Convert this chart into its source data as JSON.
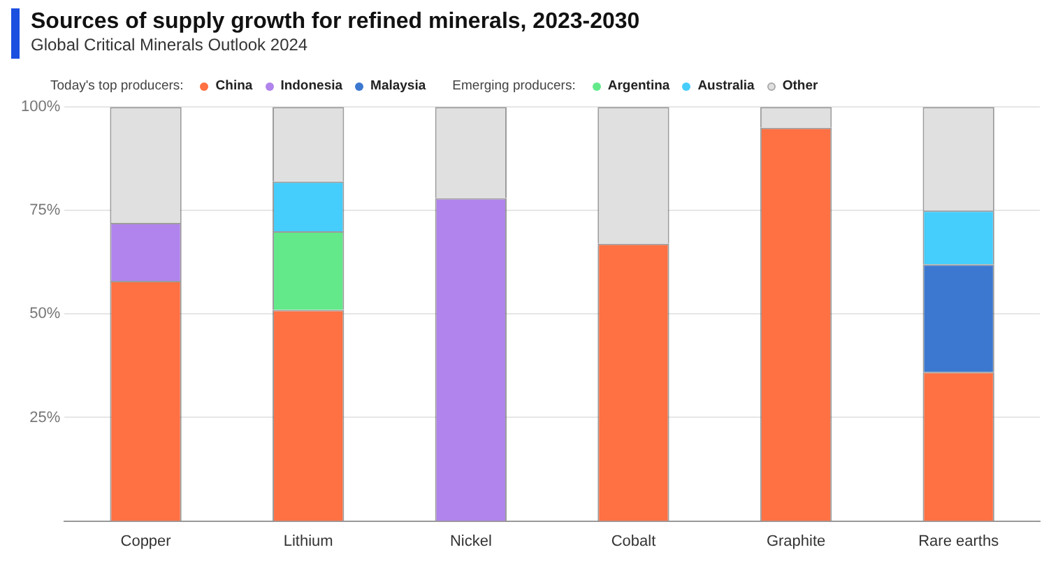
{
  "chart_data": {
    "type": "bar",
    "stacked": true,
    "title": "Sources of supply growth for refined minerals, 2023-2030",
    "subtitle": "Global Critical Minerals Outlook 2024",
    "annotations": [
      "Today's top producers:",
      "Emerging producers:"
    ],
    "categories": [
      "Copper",
      "Lithium",
      "Nickel",
      "Cobalt",
      "Graphite",
      "Rare earths"
    ],
    "series": [
      {
        "name": "China",
        "color": "#ff7043",
        "values": [
          58,
          51,
          null,
          67,
          95,
          36
        ]
      },
      {
        "name": "Indonesia",
        "color": "#b084ec",
        "values": [
          14,
          null,
          78,
          null,
          null,
          null
        ]
      },
      {
        "name": "Malaysia",
        "color": "#3c78d0",
        "values": [
          null,
          null,
          null,
          null,
          null,
          26
        ]
      },
      {
        "name": "Argentina",
        "color": "#63e98a",
        "values": [
          null,
          19,
          null,
          null,
          null,
          null
        ]
      },
      {
        "name": "Australia",
        "color": "#45cdfb",
        "values": [
          null,
          12,
          null,
          null,
          null,
          13
        ]
      },
      {
        "name": "Other",
        "color": "#e0e0e0",
        "values": [
          28,
          18,
          22,
          33,
          5,
          25
        ]
      }
    ],
    "ylim": [
      0,
      100
    ],
    "yticks": [
      {
        "value": 25,
        "label": "25%"
      },
      {
        "value": 50,
        "label": "50%"
      },
      {
        "value": 75,
        "label": "75%"
      },
      {
        "value": 100,
        "label": "100%"
      }
    ],
    "grid": "y",
    "legend": "top"
  }
}
